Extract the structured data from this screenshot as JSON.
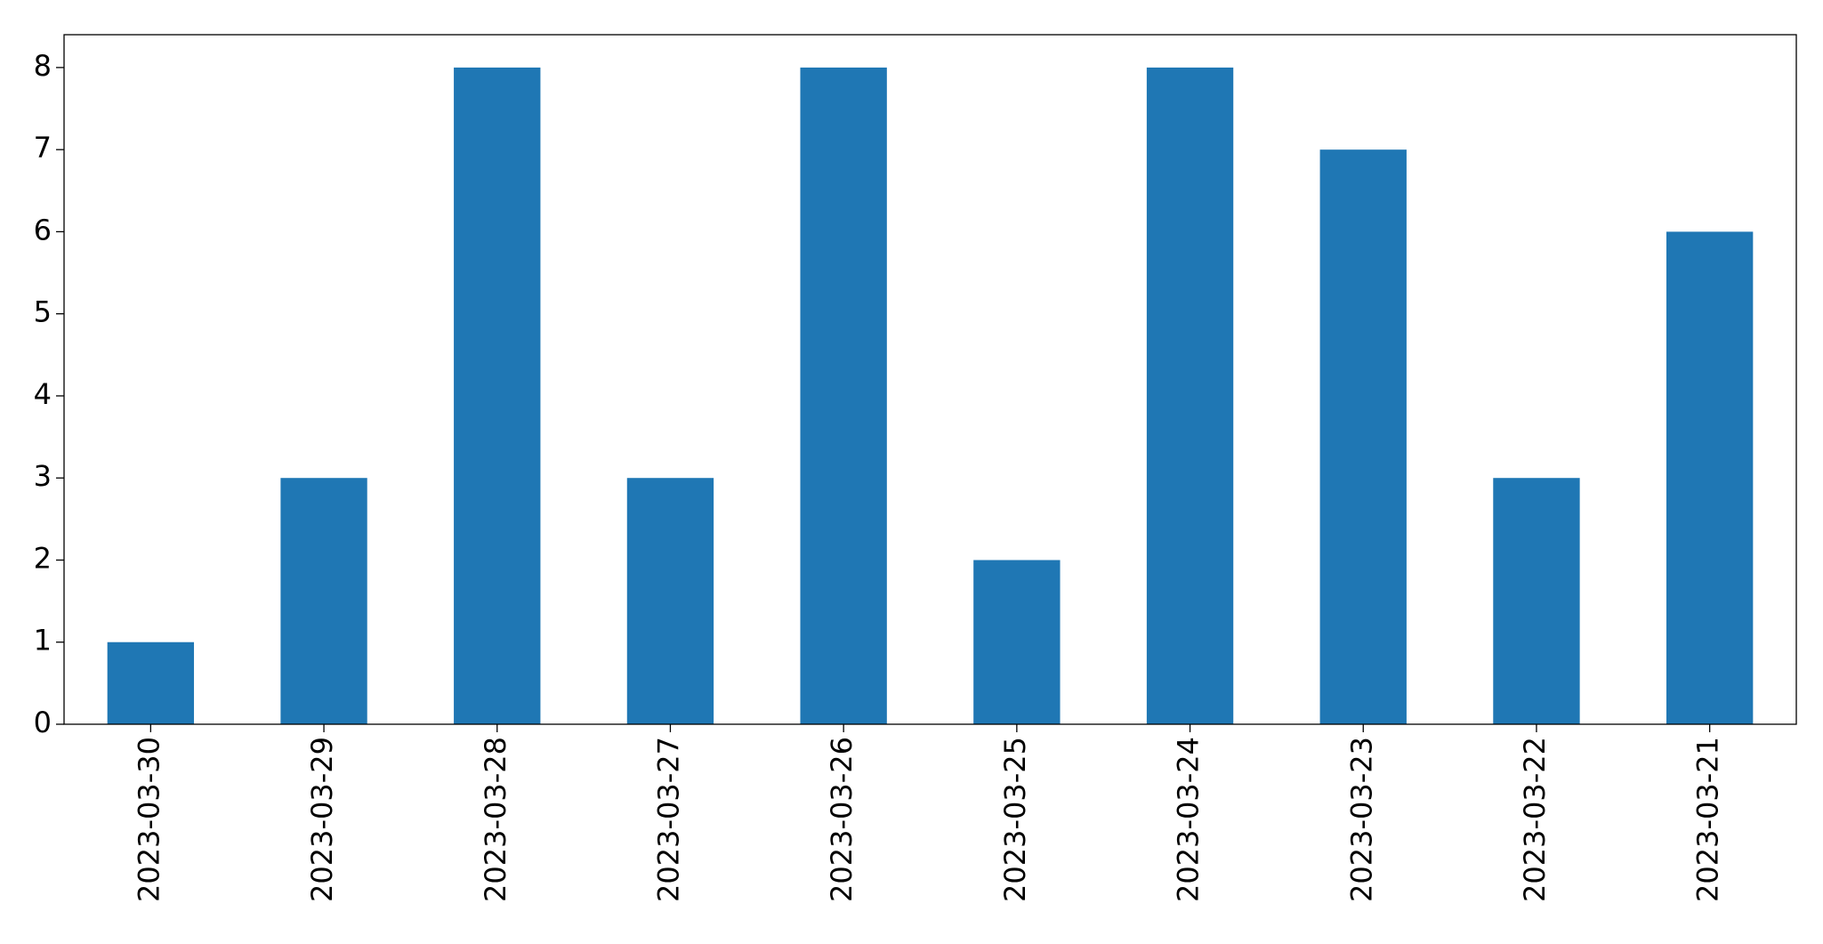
{
  "chart_data": {
    "type": "bar",
    "categories": [
      "2023-03-30",
      "2023-03-29",
      "2023-03-28",
      "2023-03-27",
      "2023-03-26",
      "2023-03-25",
      "2023-03-24",
      "2023-03-23",
      "2023-03-22",
      "2023-03-21"
    ],
    "values": [
      1,
      3,
      8,
      3,
      8,
      2,
      8,
      7,
      3,
      6
    ],
    "color": "#1f77b4",
    "ylim": [
      0,
      8.4
    ],
    "yticks": [
      0,
      1,
      2,
      3,
      4,
      5,
      6,
      7,
      8
    ],
    "grid": false
  }
}
